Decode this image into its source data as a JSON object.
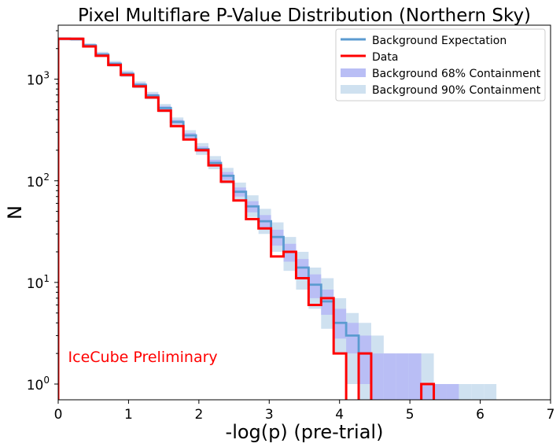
{
  "chart_data": {
    "type": "line",
    "title": "Pixel Multiflare P-Value Distribution (Northern Sky)",
    "xlabel": "-log(p) (pre-trial)",
    "ylabel": "N",
    "xlim": [
      0,
      7
    ],
    "ylim": [
      0.7,
      3400
    ],
    "yscale": "log",
    "grid": false,
    "legend_position": "top-right",
    "xticks": [
      "0",
      "1",
      "2",
      "3",
      "4",
      "5",
      "6",
      "7"
    ],
    "yticks": [
      {
        "value": 1,
        "base": "10",
        "exp": "0"
      },
      {
        "value": 10,
        "base": "10",
        "exp": "1"
      },
      {
        "value": 100,
        "base": "10",
        "exp": "2"
      },
      {
        "value": 1000,
        "base": "10",
        "exp": "3"
      }
    ],
    "annotation": {
      "text": "IceCube Preliminary",
      "x": 0.14,
      "y": 1.65,
      "color": "#ff0000"
    },
    "bin_edges": [
      0,
      0.178,
      0.356,
      0.534,
      0.712,
      0.89,
      1.068,
      1.246,
      1.424,
      1.602,
      1.78,
      1.958,
      2.136,
      2.314,
      2.492,
      2.67,
      2.848,
      3.026,
      3.204,
      3.382,
      3.56,
      3.738,
      3.916,
      4.094,
      4.272,
      4.45,
      4.628,
      4.806,
      4.984,
      5.162,
      5.34,
      5.518,
      5.696,
      5.874,
      6.052,
      6.23
    ],
    "series": [
      {
        "name": "Background Expectation",
        "kind": "step",
        "color": "#5b9bd0",
        "values": [
          2500,
          2480,
          2150,
          1750,
          1420,
          1130,
          880,
          690,
          520,
          380,
          280,
          205,
          150,
          112,
          78,
          56,
          40,
          28,
          20,
          14,
          9.5,
          6.5,
          4,
          3,
          2,
          0,
          0,
          0,
          0,
          0,
          0,
          0,
          0,
          0,
          0
        ]
      },
      {
        "name": "Data",
        "kind": "step",
        "color": "#ff0000",
        "values": [
          2500,
          2500,
          2100,
          1700,
          1380,
          1100,
          850,
          660,
          490,
          345,
          255,
          200,
          142,
          98,
          64,
          42,
          34,
          18,
          20,
          11,
          6,
          7,
          2,
          0.5,
          2,
          0.5,
          0.5,
          0.5,
          0.5,
          1,
          0.5,
          0.5,
          0.5,
          0.5,
          0.5
        ]
      }
    ],
    "bands": [
      {
        "name": "Background 68% Containment",
        "color": "#b9bef5",
        "lower": [
          2450,
          2420,
          2090,
          1690,
          1370,
          1085,
          845,
          660,
          495,
          362,
          264,
          192,
          139,
          102,
          70,
          49,
          34,
          23,
          16,
          11,
          7,
          4.8,
          2.8,
          2,
          1,
          0.5,
          0.5,
          0.5,
          0.5,
          0.5,
          0.5,
          0,
          0,
          0,
          0
        ],
        "upper": [
          2550,
          2540,
          2210,
          1810,
          1470,
          1175,
          915,
          720,
          545,
          398,
          296,
          218,
          161,
          122,
          86,
          63,
          46,
          33,
          24,
          17,
          12,
          8.5,
          5.5,
          4,
          3,
          2,
          2,
          2,
          2,
          1,
          1,
          1,
          0,
          0,
          0
        ]
      },
      {
        "name": "Background 90% Containment",
        "color": "#cfe1f0",
        "lower": [
          2400,
          2380,
          2050,
          1650,
          1330,
          1050,
          815,
          635,
          472,
          345,
          250,
          180,
          130,
          94,
          64,
          44,
          30,
          20,
          13,
          8.5,
          5.5,
          3.5,
          2,
          1,
          0.5,
          0.5,
          0.5,
          0.5,
          0.5,
          0.5,
          0.5,
          0.5,
          0.5,
          0.5,
          0.5
        ],
        "upper": [
          2600,
          2590,
          2260,
          1860,
          1510,
          1215,
          950,
          750,
          570,
          420,
          315,
          235,
          175,
          134,
          96,
          72,
          53,
          39,
          28,
          20,
          14,
          11,
          7,
          5,
          4,
          3,
          2,
          2,
          2,
          2,
          1,
          1,
          1,
          1,
          1
        ]
      }
    ]
  }
}
